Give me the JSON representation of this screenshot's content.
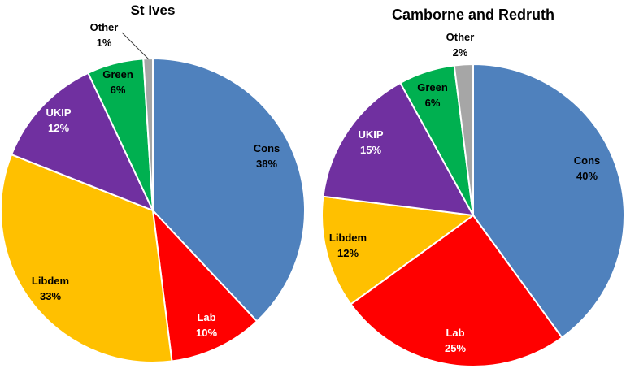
{
  "chart_data": [
    {
      "type": "pie",
      "title": "St Ives",
      "slices": [
        {
          "name": "Cons",
          "value": 38,
          "label": "38%",
          "color": "#4F81BD",
          "label_color": "#000000"
        },
        {
          "name": "Lab",
          "value": 10,
          "label": "10%",
          "color": "#FF0000",
          "label_color": "#FFFFFF"
        },
        {
          "name": "Libdem",
          "value": 33,
          "label": "33%",
          "color": "#FFC000",
          "label_color": "#000000"
        },
        {
          "name": "UKIP",
          "value": 12,
          "label": "12%",
          "color": "#7030A0",
          "label_color": "#FFFFFF"
        },
        {
          "name": "Green",
          "value": 6,
          "label": "6%",
          "color": "#00B050",
          "label_color": "#000000"
        },
        {
          "name": "Other",
          "value": 1,
          "label": "1%",
          "color": "#A6A6A6",
          "label_color": "#000000"
        }
      ]
    },
    {
      "type": "pie",
      "title": "Camborne and Redruth",
      "slices": [
        {
          "name": "Cons",
          "value": 40,
          "label": "40%",
          "color": "#4F81BD",
          "label_color": "#000000"
        },
        {
          "name": "Lab",
          "value": 25,
          "label": "25%",
          "color": "#FF0000",
          "label_color": "#FFFFFF"
        },
        {
          "name": "Libdem",
          "value": 12,
          "label": "12%",
          "color": "#FFC000",
          "label_color": "#000000"
        },
        {
          "name": "UKIP",
          "value": 15,
          "label": "15%",
          "color": "#7030A0",
          "label_color": "#FFFFFF"
        },
        {
          "name": "Green",
          "value": 6,
          "label": "6%",
          "color": "#00B050",
          "label_color": "#000000"
        },
        {
          "name": "Other",
          "value": 2,
          "label": "2%",
          "color": "#A6A6A6",
          "label_color": "#000000"
        }
      ]
    }
  ]
}
